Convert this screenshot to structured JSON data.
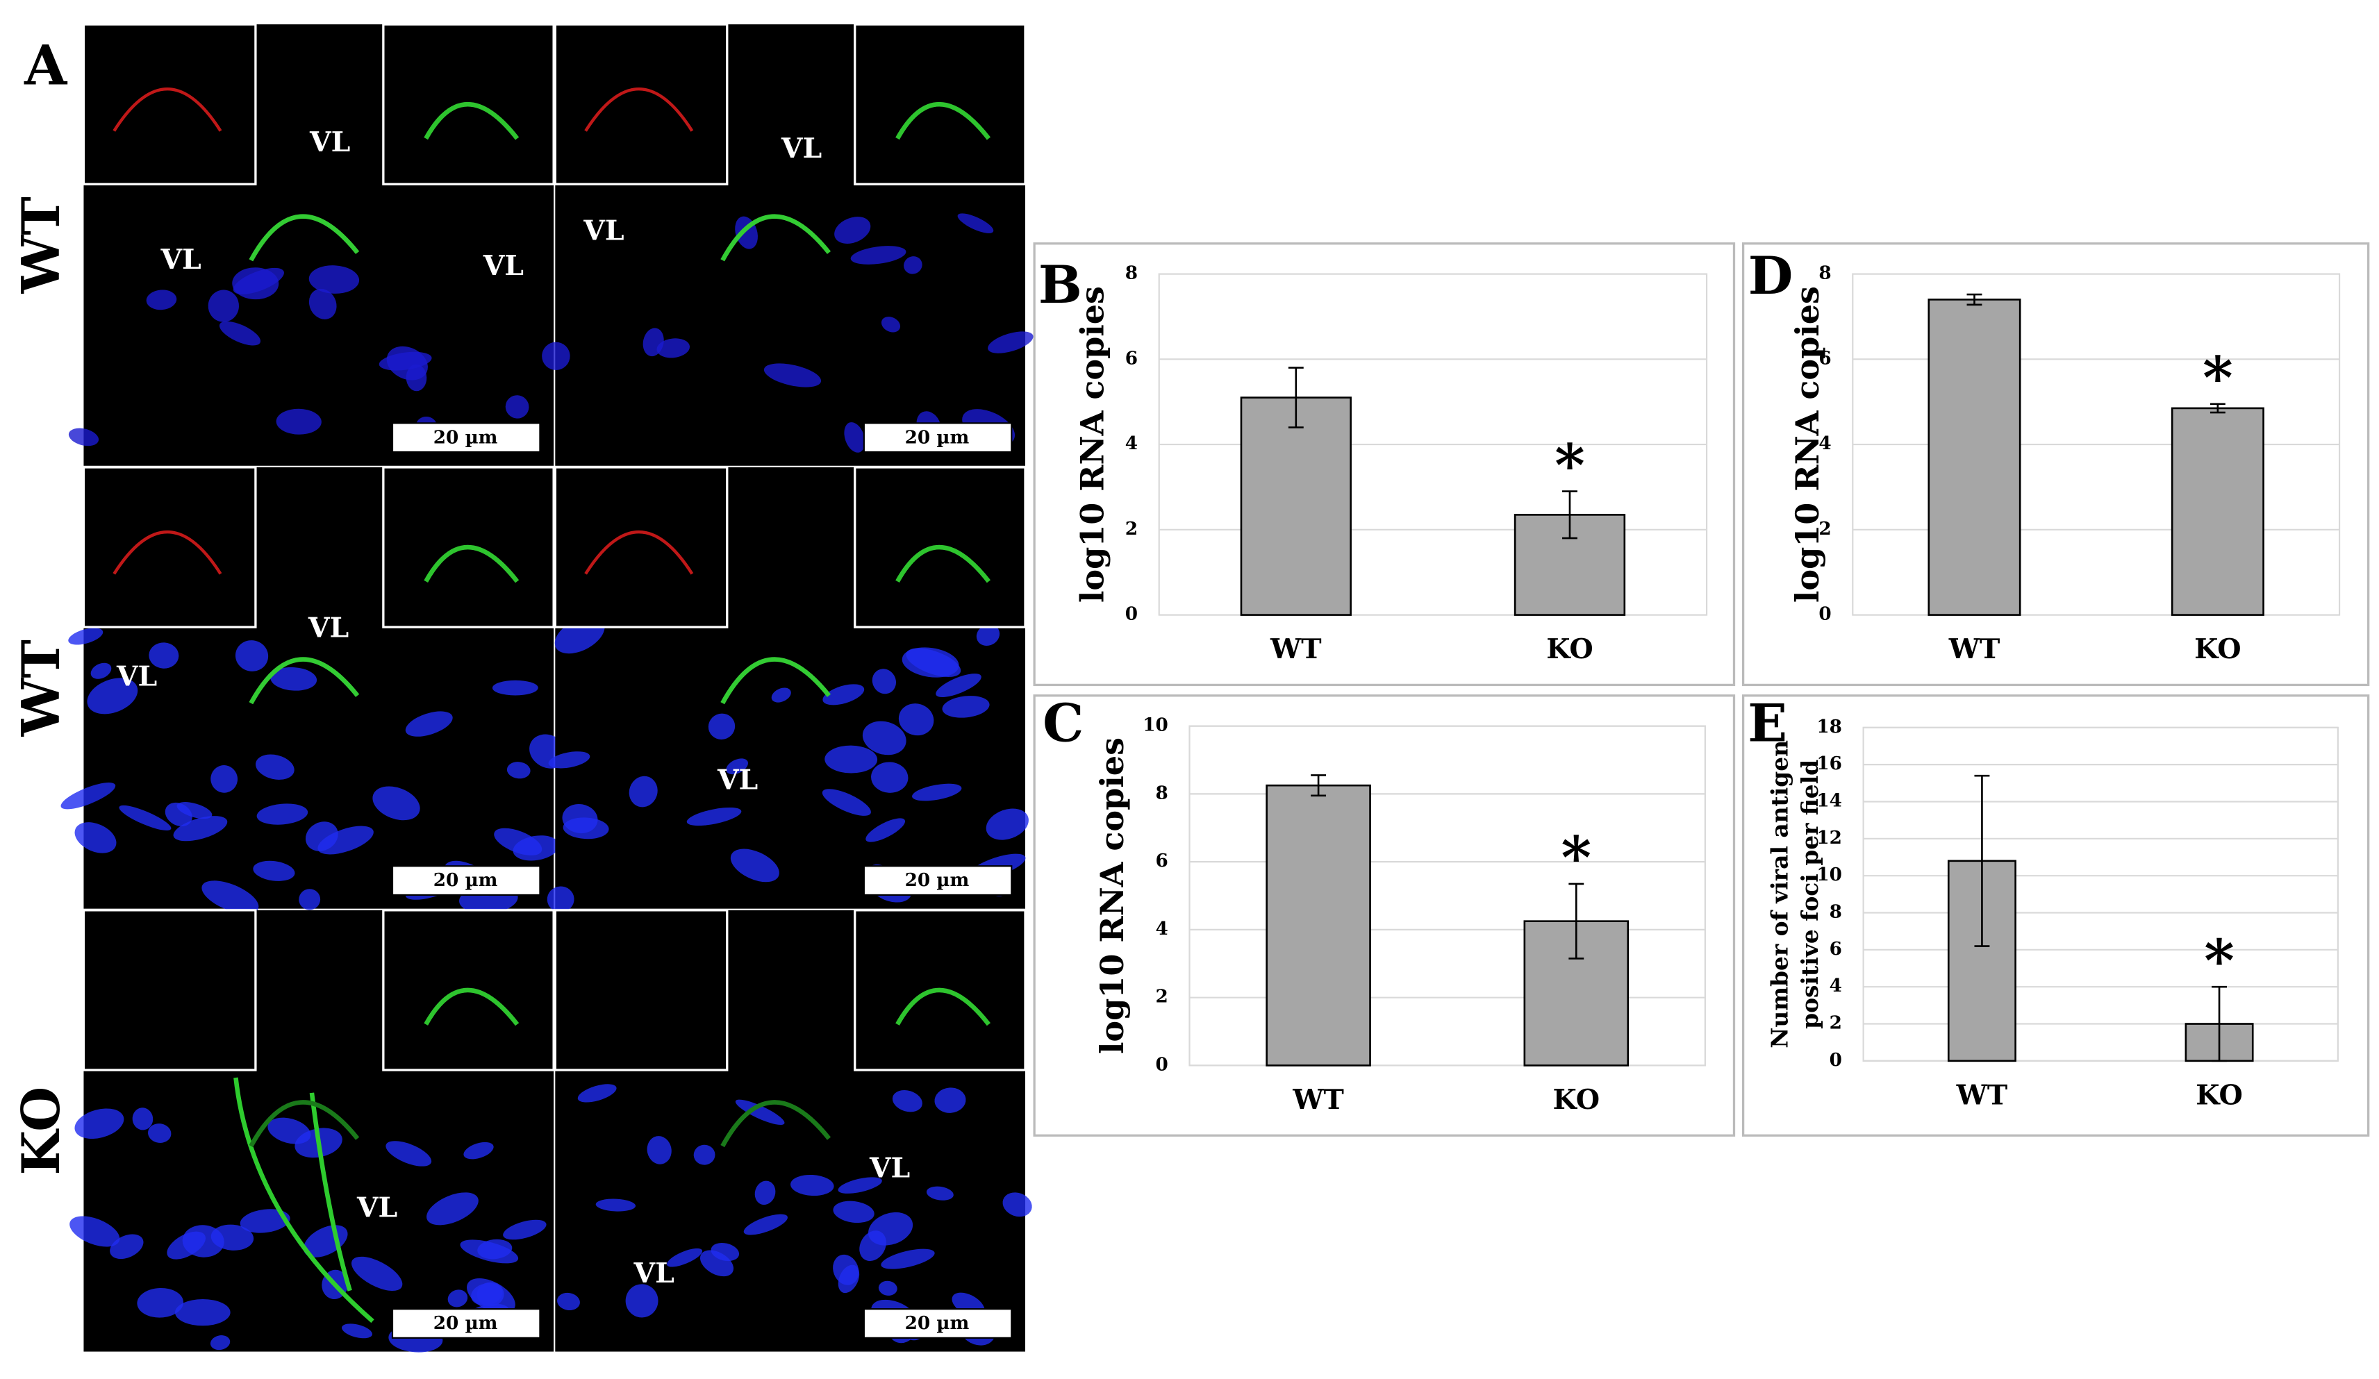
{
  "panel_a": {
    "label": "A",
    "row_labels": [
      "WT",
      "WT",
      "KO"
    ],
    "images": [
      {
        "labels": [
          "VL",
          "VL",
          "VL"
        ],
        "scale_bar": "20 µm"
      },
      {
        "labels": [
          "VL",
          "VL"
        ],
        "scale_bar": "20 µm"
      },
      {
        "labels": [
          "VL",
          "VL"
        ],
        "scale_bar": "20 µm"
      },
      {
        "labels": [
          "VL"
        ],
        "scale_bar": "20 µm"
      },
      {
        "labels": [
          "VL"
        ],
        "scale_bar": "20 µm"
      },
      {
        "labels": [
          "VL",
          "VL"
        ],
        "scale_bar": "20 µm"
      }
    ]
  },
  "chart_data": [
    {
      "type": "bar",
      "panel_label": "B",
      "ylabel": [
        "log10 RNA copies"
      ],
      "categories": [
        "WT",
        "KO"
      ],
      "values": [
        5.1,
        2.35
      ],
      "errors": [
        0.7,
        0.55
      ],
      "significance": [
        null,
        "*"
      ],
      "color": "#a6a6a6",
      "ylim": [
        0,
        8
      ],
      "yticks": [
        0,
        2,
        4,
        6,
        8
      ],
      "grid": true
    },
    {
      "type": "bar",
      "panel_label": "C",
      "ylabel": [
        "log10 RNA copies"
      ],
      "categories": [
        "WT",
        "KO"
      ],
      "values": [
        8.25,
        4.25
      ],
      "errors": [
        0.3,
        1.1
      ],
      "significance": [
        null,
        "*"
      ],
      "color": "#a6a6a6",
      "ylim": [
        0,
        10
      ],
      "yticks": [
        0,
        2,
        4,
        6,
        8,
        10
      ],
      "grid": true
    },
    {
      "type": "bar",
      "panel_label": "D",
      "ylabel": [
        "log10 RNA copies"
      ],
      "categories": [
        "WT",
        "KO"
      ],
      "values": [
        7.4,
        4.85
      ],
      "errors": [
        0.12,
        0.1
      ],
      "significance": [
        null,
        "*"
      ],
      "color": "#a6a6a6",
      "ylim": [
        0,
        8
      ],
      "yticks": [
        0,
        2,
        4,
        6,
        8
      ],
      "grid": true
    },
    {
      "type": "bar",
      "panel_label": "E",
      "ylabel": [
        "Number of viral antigen",
        "positive foci per field"
      ],
      "categories": [
        "WT",
        "KO"
      ],
      "values": [
        10.8,
        2.0
      ],
      "errors": [
        4.6,
        2.0
      ],
      "significance": [
        null,
        "*"
      ],
      "color": "#a6a6a6",
      "ylim": [
        0,
        18
      ],
      "yticks": [
        0,
        2,
        4,
        6,
        8,
        10,
        12,
        14,
        16,
        18
      ],
      "grid": true
    }
  ]
}
